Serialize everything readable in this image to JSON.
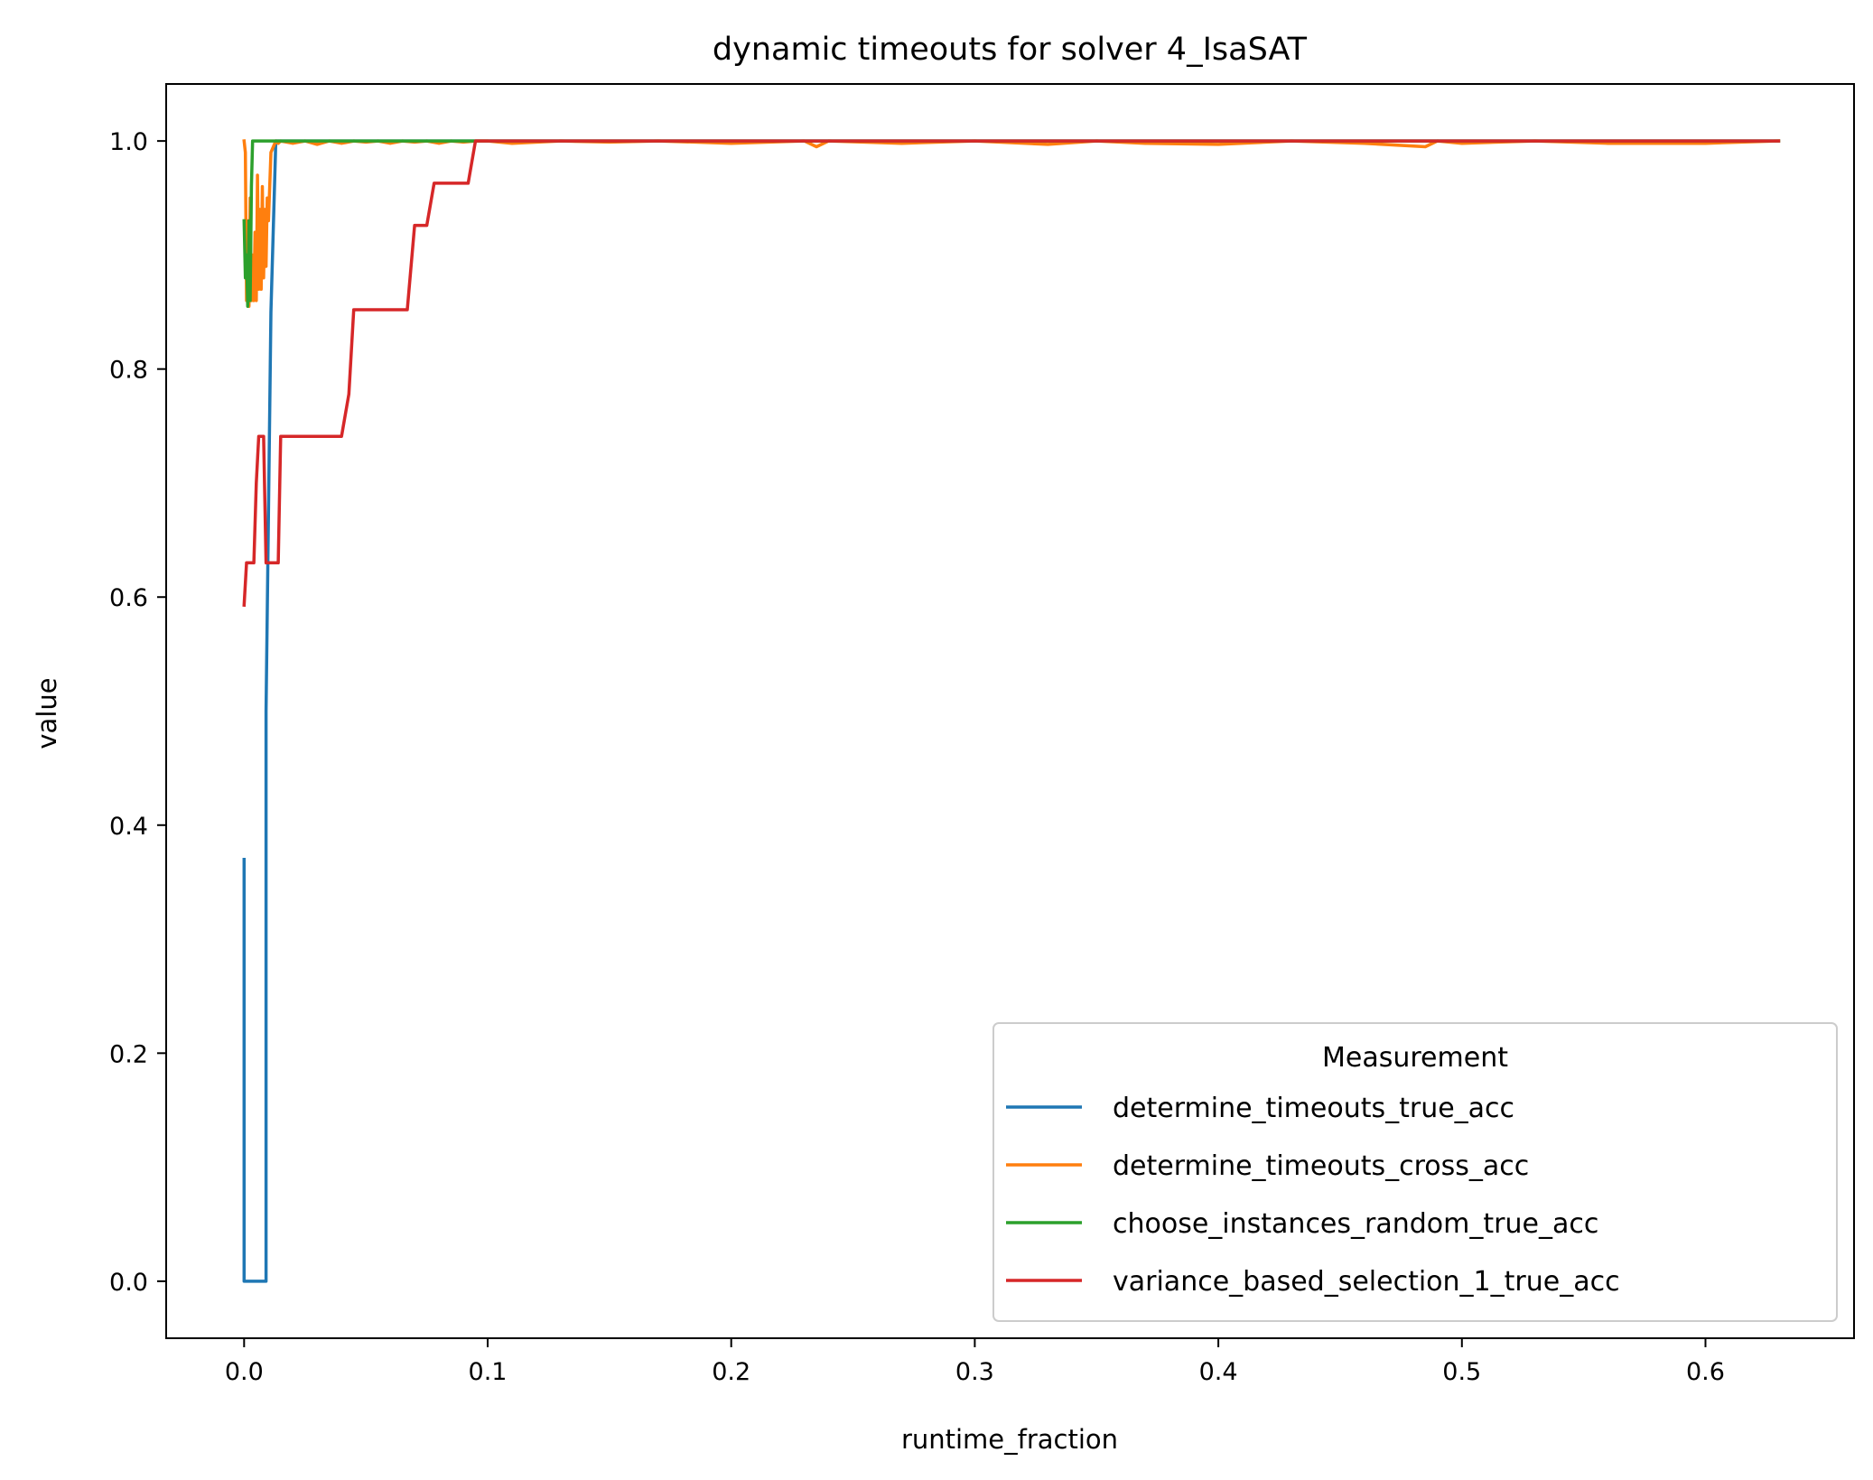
{
  "chart_data": {
    "type": "line",
    "title": "dynamic timeouts for solver 4_IsaSAT",
    "xlabel": "runtime_fraction",
    "ylabel": "value",
    "xlim": [
      -0.032,
      0.661
    ],
    "ylim": [
      -0.05,
      1.05
    ],
    "xticks": [
      "0.0",
      "0.1",
      "0.2",
      "0.3",
      "0.4",
      "0.5",
      "0.6"
    ],
    "yticks": [
      "0.0",
      "0.2",
      "0.4",
      "0.6",
      "0.8",
      "1.0"
    ],
    "grid": false,
    "legend": {
      "title": "Measurement",
      "placement": "lower right"
    },
    "series": [
      {
        "name": "determine_timeouts_true_acc",
        "color": "#1f77b4",
        "x": [
          0.0,
          0.0,
          0.001,
          0.003,
          0.006,
          0.009,
          0.009,
          0.011,
          0.013,
          0.015,
          0.63
        ],
        "y": [
          0.37,
          0.0,
          0.0,
          0.0,
          0.0,
          0.0,
          0.5,
          0.85,
          1.0,
          1.0,
          1.0
        ]
      },
      {
        "name": "determine_timeouts_cross_acc",
        "color": "#ff7f0e",
        "x": [
          0.0,
          0.0005,
          0.001,
          0.0015,
          0.002,
          0.0025,
          0.003,
          0.0035,
          0.004,
          0.0045,
          0.005,
          0.0055,
          0.006,
          0.0065,
          0.007,
          0.0075,
          0.008,
          0.0085,
          0.009,
          0.0095,
          0.01,
          0.011,
          0.012,
          0.013,
          0.014,
          0.015,
          0.02,
          0.025,
          0.03,
          0.035,
          0.04,
          0.045,
          0.05,
          0.055,
          0.06,
          0.065,
          0.07,
          0.075,
          0.08,
          0.085,
          0.09,
          0.095,
          0.1,
          0.11,
          0.13,
          0.15,
          0.17,
          0.2,
          0.23,
          0.235,
          0.24,
          0.27,
          0.3,
          0.33,
          0.35,
          0.37,
          0.4,
          0.43,
          0.46,
          0.485,
          0.49,
          0.5,
          0.53,
          0.56,
          0.6,
          0.63
        ],
        "y": [
          1.0,
          0.99,
          0.86,
          0.93,
          0.855,
          0.95,
          0.86,
          0.9,
          0.86,
          0.92,
          0.86,
          0.97,
          0.87,
          0.94,
          0.87,
          0.96,
          0.88,
          0.94,
          0.89,
          0.95,
          0.93,
          0.99,
          0.995,
          1.0,
          0.998,
          1.0,
          0.998,
          1.0,
          0.997,
          1.0,
          0.998,
          1.0,
          0.999,
          1.0,
          0.998,
          1.0,
          0.999,
          1.0,
          0.998,
          1.0,
          0.999,
          1.0,
          1.0,
          0.998,
          1.0,
          0.999,
          1.0,
          0.998,
          1.0,
          0.995,
          1.0,
          0.998,
          1.0,
          0.997,
          1.0,
          0.998,
          0.997,
          1.0,
          0.998,
          0.995,
          1.0,
          0.998,
          1.0,
          0.998,
          0.998,
          1.0
        ]
      },
      {
        "name": "choose_instances_random_true_acc",
        "color": "#2ca02c",
        "x": [
          0.0,
          0.0005,
          0.001,
          0.0015,
          0.002,
          0.0025,
          0.003,
          0.0035,
          0.004,
          0.005,
          0.006,
          0.01,
          0.1,
          0.63
        ],
        "y": [
          0.93,
          0.88,
          0.9,
          0.855,
          0.93,
          0.86,
          0.96,
          1.0,
          1.0,
          1.0,
          1.0,
          1.0,
          1.0,
          1.0
        ]
      },
      {
        "name": "variance_based_selection_1_true_acc",
        "color": "#d62728",
        "x": [
          0.0,
          0.001,
          0.002,
          0.003,
          0.004,
          0.005,
          0.006,
          0.0065,
          0.0075,
          0.008,
          0.009,
          0.01,
          0.011,
          0.012,
          0.013,
          0.014,
          0.015,
          0.02,
          0.03,
          0.04,
          0.043,
          0.045,
          0.05,
          0.055,
          0.06,
          0.065,
          0.067,
          0.07,
          0.072,
          0.075,
          0.078,
          0.08,
          0.085,
          0.09,
          0.092,
          0.095,
          0.1,
          0.2,
          0.3,
          0.4,
          0.5,
          0.63
        ],
        "y": [
          0.593,
          0.63,
          0.63,
          0.63,
          0.63,
          0.7,
          0.741,
          0.741,
          0.741,
          0.741,
          0.63,
          0.63,
          0.63,
          0.63,
          0.63,
          0.63,
          0.741,
          0.741,
          0.741,
          0.741,
          0.778,
          0.852,
          0.852,
          0.852,
          0.852,
          0.852,
          0.852,
          0.926,
          0.926,
          0.926,
          0.963,
          0.963,
          0.963,
          0.963,
          0.963,
          1.0,
          1.0,
          1.0,
          1.0,
          1.0,
          1.0,
          1.0
        ]
      }
    ]
  }
}
